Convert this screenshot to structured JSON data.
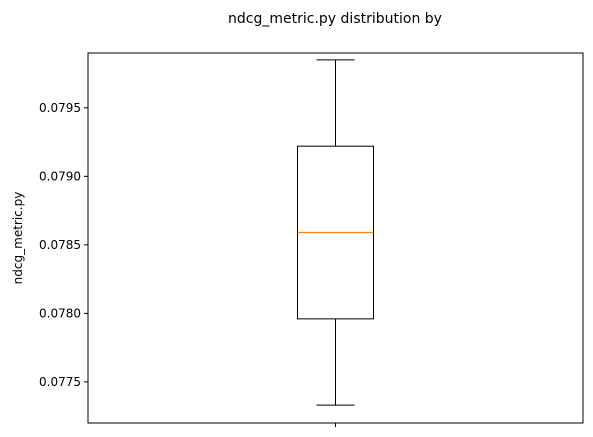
{
  "chart_data": {
    "type": "box",
    "title": "ndcg_metric.py distribution by",
    "xlabel": "",
    "ylabel": "ndcg_metric.py",
    "ylim": [
      0.0772,
      0.0799
    ],
    "yticks": [
      0.0775,
      0.078,
      0.0785,
      0.079,
      0.0795
    ],
    "ytick_labels": [
      "0.0775",
      "0.0780",
      "0.0785",
      "0.0790",
      "0.0795"
    ],
    "grid": false,
    "boxes": [
      {
        "whisker_low": 0.07733,
        "q1": 0.07796,
        "median": 0.07859,
        "q3": 0.07922,
        "whisker_high": 0.07985
      }
    ],
    "colors": {
      "box": "#000000",
      "median": "#ff7f0e"
    }
  }
}
